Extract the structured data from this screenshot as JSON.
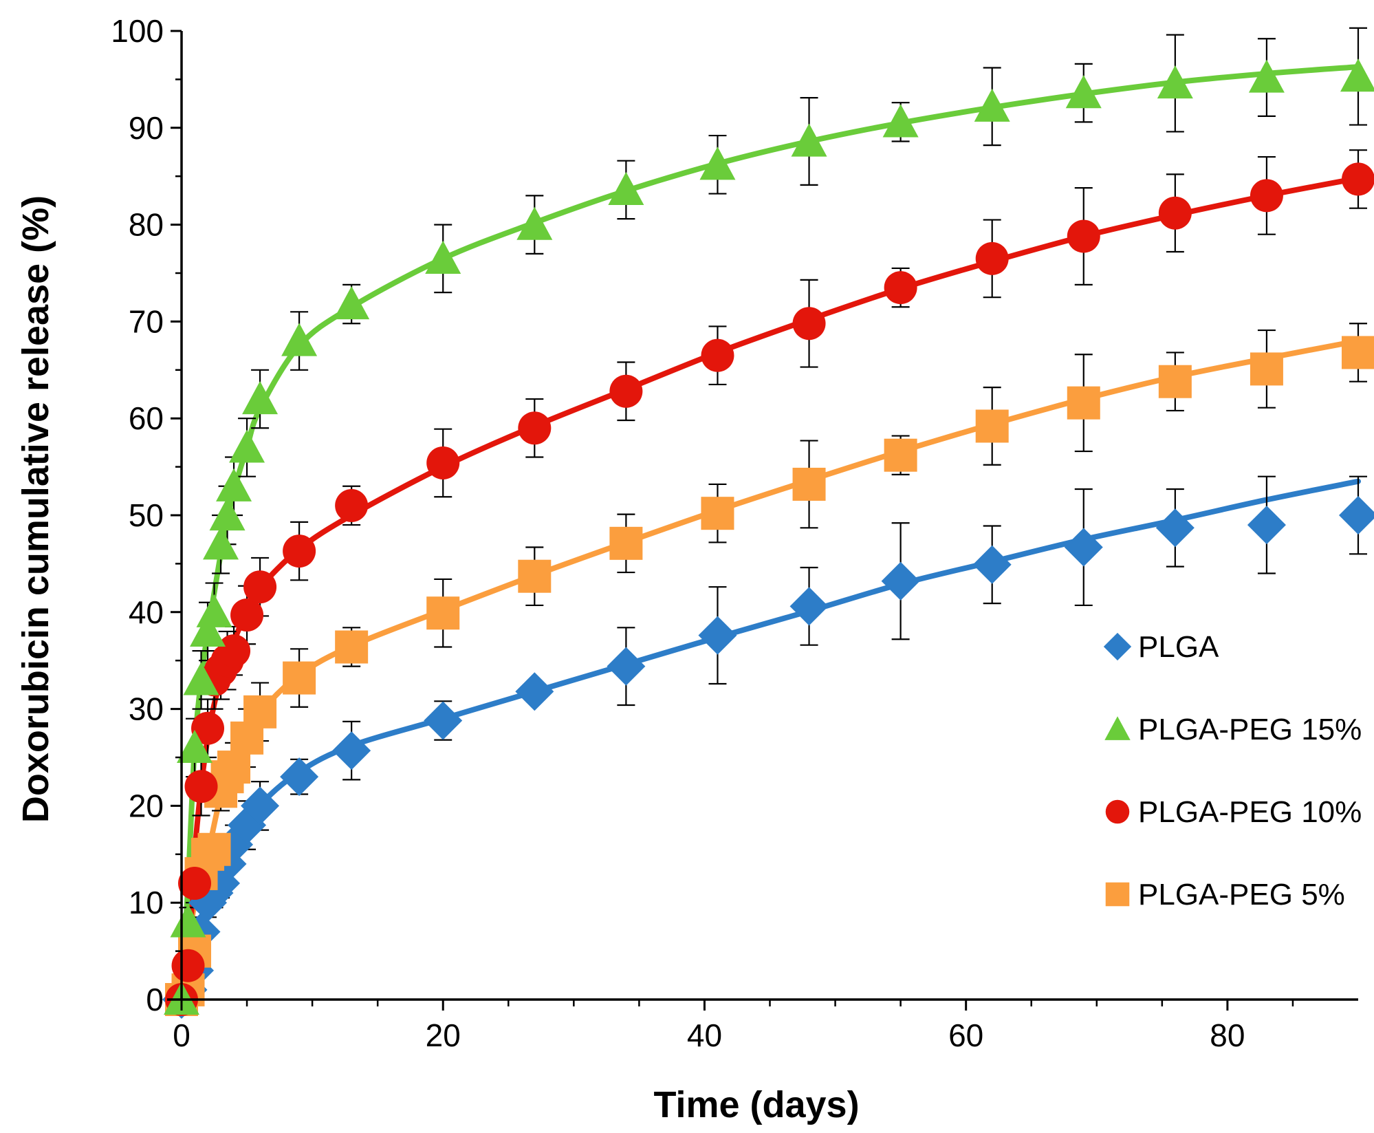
{
  "chart_data": {
    "type": "line",
    "title": "",
    "xlabel": "Time (days)",
    "ylabel": "Doxorubicin cumulative release (%)",
    "xlim": [
      -1,
      90
    ],
    "ylim": [
      0,
      100
    ],
    "xticks": [
      0,
      20,
      40,
      60,
      80
    ],
    "yticks": [
      0,
      10,
      20,
      30,
      40,
      50,
      60,
      70,
      80,
      90,
      100
    ],
    "x_minor_step": 5,
    "grid": false,
    "legend_position": "center-right",
    "series": [
      {
        "name": "PLGA",
        "marker": "diamond",
        "color": "#2D7DC8",
        "x": [
          0,
          0.5,
          1,
          1.5,
          2,
          2.5,
          3,
          3.5,
          4,
          5,
          6,
          9,
          13,
          20,
          27,
          34,
          41,
          48,
          55,
          62,
          69,
          76,
          83,
          90
        ],
        "y": [
          0,
          1,
          3,
          7,
          10,
          11,
          12,
          14,
          16,
          18,
          20,
          23,
          25.7,
          28.8,
          31.8,
          34.4,
          37.6,
          40.6,
          43.2,
          44.9,
          46.7,
          48.7,
          49,
          50
        ],
        "err": [
          0,
          0.5,
          1,
          1.5,
          1.5,
          1.5,
          1.5,
          2,
          2,
          2.5,
          2.5,
          1.8,
          3,
          2,
          0,
          4,
          5,
          4,
          6,
          4,
          6,
          4,
          5,
          4
        ],
        "fit_x": [
          0,
          1,
          2,
          4,
          6,
          9,
          13,
          20,
          27,
          34,
          41,
          48,
          55,
          62,
          69,
          76,
          83,
          90
        ],
        "fit_y": [
          0,
          4,
          9,
          15.5,
          20,
          23.5,
          26.2,
          29,
          31.8,
          34.6,
          37.4,
          40.1,
          42.9,
          45.2,
          47.5,
          49.5,
          51.6,
          53.5
        ]
      },
      {
        "name": "PLGA-PEG 15%",
        "marker": "triangle",
        "color": "#6ACC3A",
        "x": [
          0,
          0.5,
          1,
          1.5,
          2,
          2.5,
          3,
          3.5,
          4,
          5,
          6,
          9,
          13,
          20,
          27,
          34,
          41,
          48,
          55,
          62,
          69,
          76,
          83,
          90
        ],
        "y": [
          0,
          8,
          26,
          33,
          38,
          40,
          47,
          50,
          53,
          57,
          62,
          68,
          71.8,
          76.5,
          80,
          83.6,
          86.2,
          88.6,
          90.6,
          92.2,
          93.6,
          94.6,
          95.2,
          95.3
        ],
        "err": [
          0,
          1.5,
          3,
          3,
          3,
          3,
          3,
          3,
          3,
          3,
          3,
          3,
          2,
          3.5,
          3,
          3,
          3,
          4.5,
          2,
          4,
          3,
          5,
          4,
          5
        ],
        "fit_x": [
          0,
          0.5,
          1,
          1.5,
          2,
          2.5,
          3,
          3.5,
          4,
          5,
          6,
          9,
          13,
          20,
          27,
          34,
          41,
          48,
          55,
          62,
          69,
          76,
          83,
          90
        ],
        "fit_y": [
          0,
          12,
          26,
          33,
          38,
          42,
          46,
          49.5,
          52.5,
          57,
          61,
          67.5,
          71.5,
          76.5,
          80.2,
          83.5,
          86.3,
          88.6,
          90.5,
          92.1,
          93.5,
          94.7,
          95.6,
          96.3
        ]
      },
      {
        "name": "PLGA-PEG 10%",
        "marker": "circle",
        "color": "#E3160B",
        "x": [
          0,
          0.5,
          1,
          1.5,
          2,
          2.5,
          3,
          3.5,
          4,
          5,
          6,
          9,
          13,
          20,
          27,
          34,
          41,
          48,
          55,
          62,
          69,
          76,
          83,
          90
        ],
        "y": [
          0,
          3.5,
          12,
          22,
          28,
          33,
          34,
          35,
          36,
          39.7,
          42.6,
          46.3,
          51,
          55.4,
          59,
          62.8,
          66.5,
          69.8,
          73.5,
          76.5,
          78.8,
          81.2,
          83,
          84.7
        ],
        "err": [
          0,
          1,
          2,
          3,
          3,
          3,
          3,
          3,
          2.5,
          3,
          3,
          3,
          2,
          3.5,
          3,
          3,
          3,
          4.5,
          2,
          4,
          5,
          4,
          4,
          3
        ],
        "fit_x": [
          0,
          0.5,
          1,
          1.5,
          2,
          2.5,
          3,
          4,
          5,
          6,
          9,
          13,
          20,
          27,
          34,
          41,
          48,
          55,
          62,
          69,
          76,
          83,
          90
        ],
        "fit_y": [
          3.5,
          3.5,
          15,
          22,
          27,
          30.5,
          33,
          37,
          40,
          42.5,
          46.5,
          50,
          55,
          59.2,
          63,
          66.8,
          70.2,
          73.4,
          76.2,
          78.8,
          81,
          83,
          84.8
        ]
      },
      {
        "name": "PLGA-PEG 5%",
        "marker": "square",
        "color": "#FB9E3E",
        "x": [
          0,
          0.5,
          1,
          1.5,
          2,
          2.5,
          3,
          3.5,
          4,
          5,
          6,
          9,
          13,
          20,
          27,
          34,
          41,
          48,
          55,
          62,
          69,
          76,
          83,
          90
        ],
        "y": [
          0,
          1,
          5,
          13,
          15,
          15.5,
          21.5,
          23,
          24,
          27,
          29.7,
          33.2,
          36.4,
          39.9,
          43.7,
          47.1,
          50.2,
          53.2,
          56.2,
          59.2,
          61.6,
          63.8,
          65.1,
          66.8
        ],
        "err": [
          0,
          0.5,
          1,
          1.5,
          1.5,
          1.5,
          2,
          2.5,
          2.5,
          3,
          3,
          3,
          2,
          3.5,
          3,
          3,
          3,
          4.5,
          2,
          4,
          5,
          3,
          4,
          3
        ],
        "fit_x": [
          0,
          1,
          2,
          3,
          4,
          6,
          9,
          13,
          20,
          27,
          34,
          41,
          48,
          55,
          62,
          69,
          76,
          83,
          90
        ],
        "fit_y": [
          0,
          10,
          15,
          21,
          24.5,
          29.5,
          33.5,
          36.5,
          40.2,
          43.8,
          47.2,
          50.5,
          53.6,
          56.6,
          59.4,
          62,
          64.3,
          66.2,
          68
        ]
      }
    ]
  }
}
